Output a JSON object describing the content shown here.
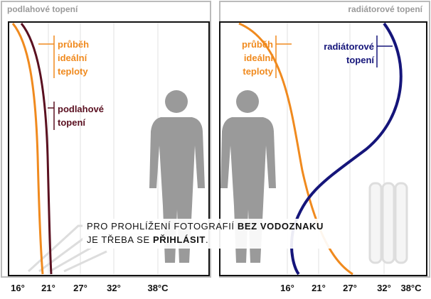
{
  "left_panel": {
    "title": "podlahové topení",
    "label_ideal": [
      "průběh",
      "ideální",
      "teploty"
    ],
    "label_heating": [
      "podlahové",
      "topení"
    ],
    "axis_labels": [
      "16°",
      "21°",
      "27°",
      "32°",
      "38°C"
    ]
  },
  "right_panel": {
    "title": "radiátorové topení",
    "label_ideal": [
      "průběh",
      "ideální",
      "teploty"
    ],
    "label_heating": [
      "radiátorové",
      "topení"
    ],
    "axis_labels": [
      "16°",
      "21°",
      "27°",
      "32°",
      "38°C"
    ]
  },
  "watermark": {
    "line1_plain": "PRO PROHLÍŽENÍ FOTOGRAFIÍ",
    "line1_bold": "BEZ VODOZNAKU",
    "line2_plain": "JE TŘEBA SE",
    "line2_bold": "PŘIHLÁSIT",
    "line2_end": "."
  }
}
